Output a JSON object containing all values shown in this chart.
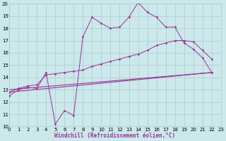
{
  "x_range": [
    0,
    23
  ],
  "y_range": [
    10,
    20
  ],
  "background_color": "#cbe8ea",
  "grid_color": "#b0c8cc",
  "line_color": "#993399",
  "xlabel": "Windchill (Refroidissement éolien,°C)",
  "xlabel_fontsize": 5.5,
  "tick_fontsize": 5,
  "series1_x": [
    0,
    1,
    2,
    3,
    4,
    5,
    6,
    7,
    8,
    9,
    10,
    11,
    12,
    13,
    14,
    15,
    16,
    17,
    18,
    19,
    20,
    21,
    22
  ],
  "series1_y": [
    12.5,
    13.0,
    13.2,
    13.1,
    14.4,
    10.2,
    11.3,
    10.9,
    17.3,
    18.9,
    18.4,
    18.0,
    18.1,
    18.9,
    20.1,
    19.3,
    18.9,
    18.1,
    18.1,
    16.8,
    16.3,
    15.6,
    14.4
  ],
  "series2_x": [
    0,
    1,
    2,
    3,
    4,
    5,
    6,
    7,
    8,
    9,
    10,
    11,
    12,
    13,
    14,
    15,
    16,
    17,
    18,
    19,
    20,
    21,
    22
  ],
  "series2_y": [
    12.8,
    13.1,
    13.3,
    13.4,
    14.2,
    14.3,
    14.4,
    14.5,
    14.6,
    14.9,
    15.1,
    15.3,
    15.5,
    15.7,
    15.9,
    16.2,
    16.6,
    16.8,
    17.0,
    17.0,
    16.9,
    16.2,
    15.5
  ],
  "regline1_x": [
    0,
    22
  ],
  "regline1_y": [
    12.8,
    14.4
  ],
  "regline2_x": [
    0,
    22
  ],
  "regline2_y": [
    13.0,
    14.4
  ]
}
